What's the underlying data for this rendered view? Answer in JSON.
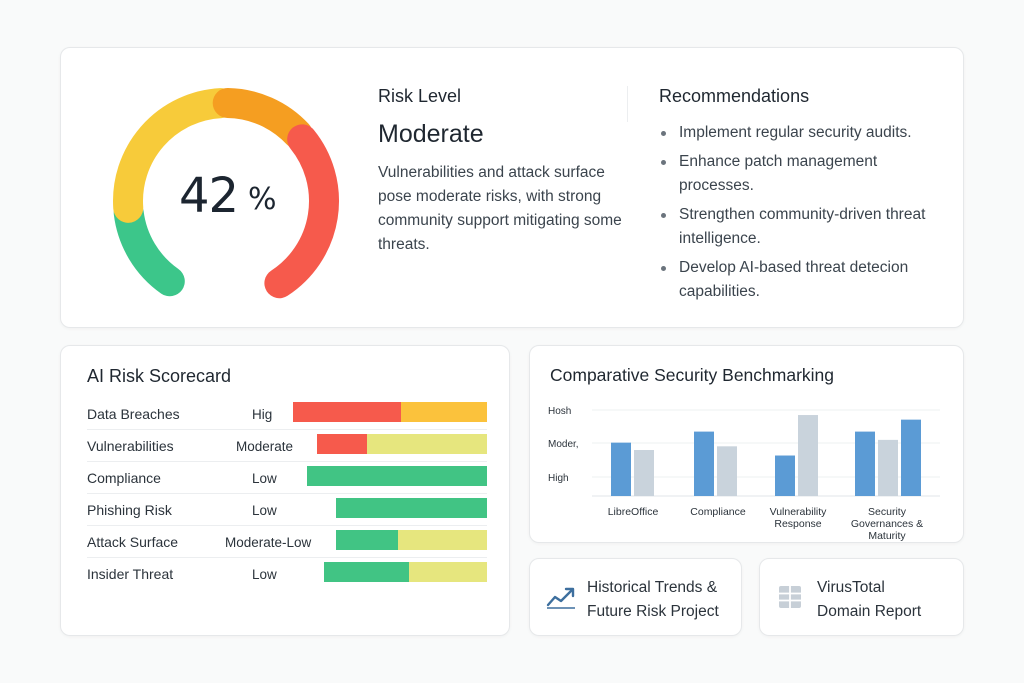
{
  "summary": {
    "gauge": {
      "value": "42",
      "unit": "%",
      "percent": 42,
      "segment_colors": [
        "#3cc68a",
        "#f7cb3a",
        "#f59e21",
        "#f65a4c"
      ]
    },
    "risk_label": "Risk Level",
    "risk_value": "Moderate",
    "risk_description": "Vulnerabilities and attack surface pose moderate risks, with strong community support mitigating some threats."
  },
  "recommendations": {
    "title": "Recommendations",
    "items": [
      "Implement regular security audits.",
      "Enhance patch management processes.",
      "Strengthen community-driven threat intelligence.",
      "Develop AI-based threat detecion capabilities."
    ]
  },
  "scorecard": {
    "title": "AI Risk Scorecard",
    "rows": [
      {
        "name": "Data Breaches",
        "level": "Hig"
      },
      {
        "name": "Vulnerabilities",
        "level": "Moderate"
      },
      {
        "name": "Compliance",
        "level": "Low"
      },
      {
        "name": "Phishing Risk",
        "level": "Low"
      },
      {
        "name": "Attack Surface",
        "level": "Moderate-Low"
      },
      {
        "name": "Insider Threat",
        "level": "Low"
      }
    ],
    "colors": {
      "red": "#f65a4c",
      "orange": "#fbc23c",
      "green": "#41c484",
      "yellow": "#e6e67e"
    }
  },
  "benchmark": {
    "title": "Comparative Security Benchmarking",
    "chart_data": {
      "type": "bar",
      "categories": [
        "LibreOffice",
        "Compliance",
        "Vulnerability Response",
        "Security Governances & Maturity"
      ],
      "y_tick_labels": [
        "Hosh",
        "Moder,",
        "High"
      ],
      "series": [
        {
          "values": [
            0.58,
            0.7,
            0.44,
            0.7
          ],
          "color": "#5b9bd5"
        },
        {
          "values": [
            0.5,
            0.54,
            0.88,
            0.61
          ],
          "color": "#c9d3dc"
        },
        {
          "values": [
            null,
            null,
            null,
            0.83
          ],
          "color": "#5b9bd5"
        }
      ],
      "bar_colors_note": "third bar in Vulnerability Response group is blue",
      "grid": true
    }
  },
  "tiles": {
    "trends": {
      "line1": "Historical Trends &",
      "line2": "Future Risk Project",
      "icon": "trend-chart-icon"
    },
    "virustotal": {
      "line1": "VirusTotal",
      "line2": "Domain Report",
      "icon": "grid-report-icon"
    }
  }
}
